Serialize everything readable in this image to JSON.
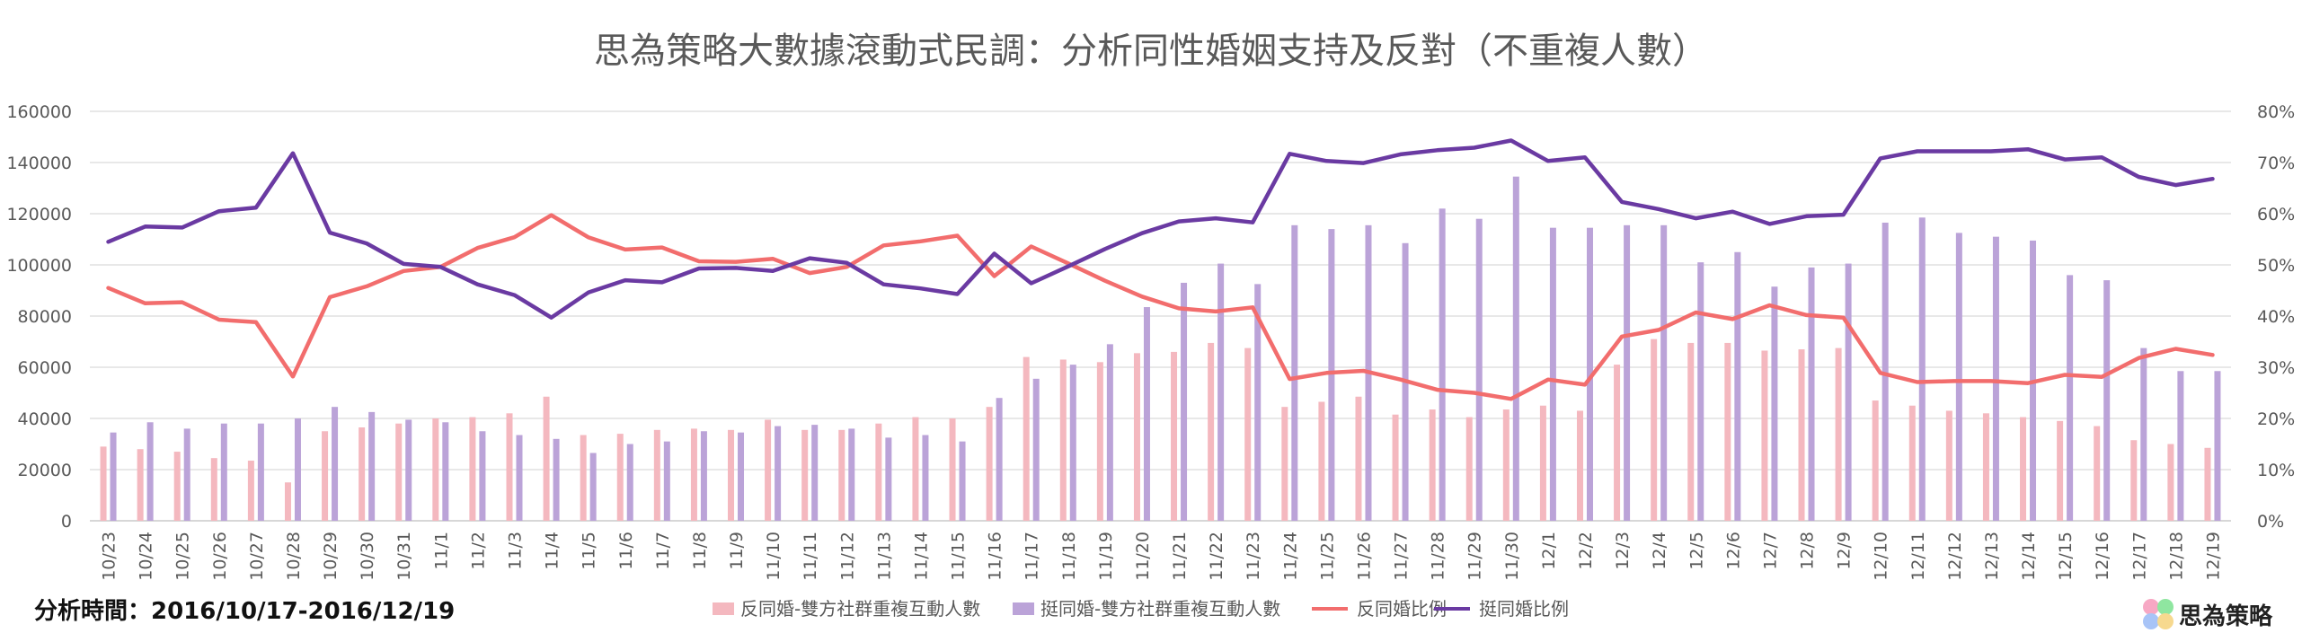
{
  "chart_data": {
    "type": "bar",
    "title": "思為策略大數據滾動式民調：分析同性婚姻支持及反對（不重複人數）",
    "categories": [
      "10/23",
      "10/24",
      "10/25",
      "10/26",
      "10/27",
      "10/28",
      "10/29",
      "10/30",
      "10/31",
      "11/1",
      "11/2",
      "11/3",
      "11/4",
      "11/5",
      "11/6",
      "11/7",
      "11/8",
      "11/9",
      "11/10",
      "11/11",
      "11/12",
      "11/13",
      "11/14",
      "11/15",
      "11/16",
      "11/17",
      "11/18",
      "11/19",
      "11/20",
      "11/21",
      "11/22",
      "11/23",
      "11/24",
      "11/25",
      "11/26",
      "11/27",
      "11/28",
      "11/29",
      "11/30",
      "12/1",
      "12/2",
      "12/3",
      "12/4",
      "12/5",
      "12/6",
      "12/7",
      "12/8",
      "12/9",
      "12/10",
      "12/11",
      "12/12",
      "12/13",
      "12/14",
      "12/15",
      "12/16",
      "12/17",
      "12/18",
      "12/19"
    ],
    "y_left": {
      "ylim": [
        0,
        160000
      ],
      "ticks": [
        "0",
        "20000",
        "40000",
        "60000",
        "80000",
        "100000",
        "120000",
        "140000",
        "160000"
      ]
    },
    "y_right": {
      "ylim": [
        0,
        80
      ],
      "ticks": [
        "0%",
        "10%",
        "20%",
        "30%",
        "40%",
        "50%",
        "60%",
        "70%",
        "80%"
      ]
    },
    "grid": true,
    "legend_position": "bottom",
    "series": [
      {
        "name": "反同婚-雙方社群重複互動人數",
        "kind": "bar",
        "axis": "left",
        "color": "#f4b8bf",
        "values": [
          29000,
          28000,
          27000,
          24500,
          23500,
          15000,
          35000,
          36500,
          38000,
          40000,
          40500,
          42000,
          48500,
          33500,
          34000,
          35500,
          36000,
          35500,
          39500,
          35500,
          35500,
          38000,
          40500,
          40000,
          44500,
          64000,
          63000,
          62000,
          65500,
          66000,
          69500,
          67500,
          44500,
          46500,
          48500,
          41500,
          43500,
          40500,
          43500,
          45000,
          43000,
          61000,
          71000,
          69500,
          69500,
          66500,
          67000,
          67500,
          47000,
          45000,
          43000,
          42000,
          40500,
          39000,
          37000,
          31500,
          30000,
          28500
        ]
      },
      {
        "name": "挺同婚-雙方社群重複互動人數",
        "kind": "bar",
        "axis": "left",
        "color": "#bba3d8",
        "values": [
          34500,
          38500,
          36000,
          38000,
          38000,
          40000,
          44500,
          42500,
          39500,
          38500,
          35000,
          33500,
          32000,
          26500,
          30000,
          31000,
          35000,
          34500,
          37000,
          37500,
          36000,
          32500,
          33500,
          31000,
          48000,
          55500,
          61000,
          69000,
          83500,
          93000,
          100500,
          92500,
          115500,
          114000,
          115500,
          108500,
          122000,
          118000,
          134500,
          114500,
          114500,
          115500,
          115500,
          101000,
          105000,
          91500,
          99000,
          100500,
          116500,
          118500,
          112500,
          111000,
          109500,
          96000,
          94000,
          67500,
          58500,
          58500
        ]
      },
      {
        "name": "反同婚比例",
        "kind": "line",
        "axis": "right",
        "color": "#f26d6d",
        "values": [
          45.5,
          42.5,
          42.7,
          39.3,
          38.8,
          28.2,
          43.7,
          45.8,
          48.8,
          49.6,
          53.3,
          55.4,
          59.7,
          55.4,
          53.0,
          53.4,
          50.7,
          50.6,
          51.2,
          48.4,
          49.6,
          53.8,
          54.6,
          55.7,
          47.8,
          53.6,
          50.3,
          46.9,
          43.8,
          41.5,
          40.9,
          41.7,
          27.7,
          28.9,
          29.3,
          27.6,
          25.6,
          25.0,
          23.8,
          27.6,
          26.6,
          36.0,
          37.3,
          40.7,
          39.4,
          42.1,
          40.2,
          39.7,
          28.9,
          27.1,
          27.3,
          27.3,
          26.9,
          28.5,
          28.1,
          31.8,
          33.6,
          32.4
        ]
      },
      {
        "name": "挺同婚比例",
        "kind": "line",
        "axis": "right",
        "color": "#6a3aa2",
        "values": [
          54.5,
          57.5,
          57.3,
          60.5,
          61.2,
          71.8,
          56.3,
          54.2,
          50.2,
          49.6,
          46.2,
          44.1,
          39.7,
          44.6,
          47.0,
          46.6,
          49.3,
          49.4,
          48.8,
          51.3,
          50.4,
          46.2,
          45.4,
          44.3,
          52.2,
          46.4,
          49.7,
          53.1,
          56.2,
          58.5,
          59.1,
          58.3,
          71.7,
          70.3,
          69.9,
          71.6,
          72.4,
          72.9,
          74.3,
          70.3,
          71.0,
          62.3,
          60.9,
          59.1,
          60.4,
          58.0,
          59.5,
          59.8,
          70.8,
          72.2,
          72.2,
          72.2,
          72.6,
          70.6,
          71.0,
          67.2,
          65.6,
          66.8
        ]
      }
    ],
    "footer_text": "分析時間：2016/10/17-2016/12/19",
    "brand": "思為策略",
    "logo_colors": [
      "#f7a8c4",
      "#8fe6a0",
      "#a8c4f7",
      "#f7d98f"
    ]
  }
}
